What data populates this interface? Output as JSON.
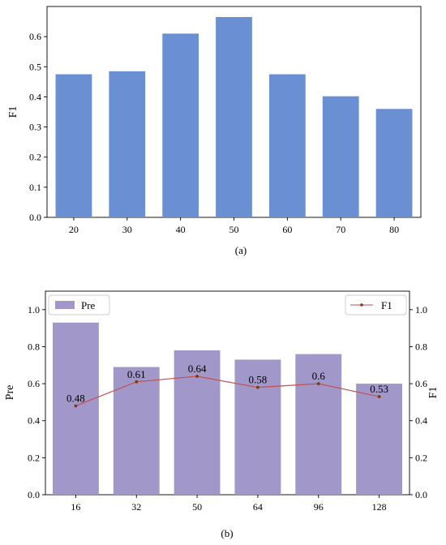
{
  "chart_data": [
    {
      "type": "bar",
      "caption": "(a)",
      "categories": [
        "20",
        "30",
        "40",
        "50",
        "60",
        "70",
        "80"
      ],
      "values": [
        0.475,
        0.485,
        0.61,
        0.665,
        0.475,
        0.402,
        0.36
      ],
      "xlabel": "",
      "ylabel": "F1",
      "ylim": [
        0,
        0.7
      ],
      "yticks": [
        "0.0",
        "0.1",
        "0.2",
        "0.3",
        "0.4",
        "0.5",
        "0.6"
      ],
      "grid": false,
      "colors": {
        "bar": "#6a8fd2"
      }
    },
    {
      "type": "bar",
      "caption": "(b)",
      "categories": [
        "16",
        "32",
        "50",
        "64",
        "96",
        "128"
      ],
      "series": [
        {
          "name": "Pre",
          "type": "bar",
          "axis": "left",
          "values": [
            0.93,
            0.69,
            0.78,
            0.73,
            0.76,
            0.6
          ]
        },
        {
          "name": "F1",
          "type": "line",
          "axis": "right",
          "values": [
            0.48,
            0.61,
            0.64,
            0.58,
            0.6,
            0.53
          ],
          "data_labels": [
            "0.48",
            "0.61",
            "0.64",
            "0.58",
            "0.6",
            "0.53"
          ]
        }
      ],
      "ylabel": "Pre",
      "y2label": "F1",
      "ylim": [
        0,
        1.1
      ],
      "y2lim": [
        0,
        1.1
      ],
      "yticks": [
        "0.0",
        "0.2",
        "0.4",
        "0.6",
        "0.8",
        "1.0"
      ],
      "legends": [
        {
          "label": "Pre",
          "placement": "top-left"
        },
        {
          "label": "F1",
          "placement": "top-right"
        }
      ],
      "grid": false,
      "colors": {
        "bar": "#a197c9",
        "line": "#c0504d",
        "marker": "#7a3b12"
      }
    }
  ]
}
